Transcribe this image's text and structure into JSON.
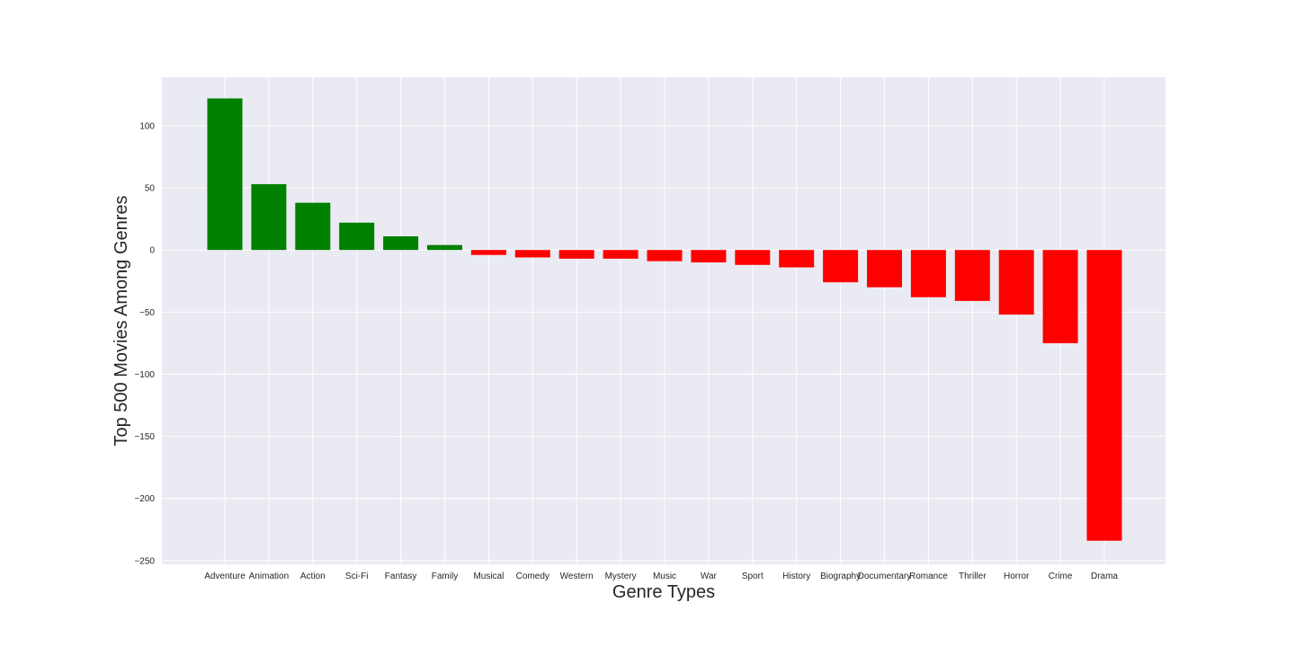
{
  "chart_data": {
    "type": "bar",
    "title": "",
    "xlabel": "Genre Types",
    "ylabel": "Top 500 Movies Among Genres",
    "categories": [
      "Adventure",
      "Animation",
      "Action",
      "Sci-Fi",
      "Fantasy",
      "Family",
      "Musical",
      "Comedy",
      "Western",
      "Mystery",
      "Music",
      "War",
      "Sport",
      "History",
      "Biography",
      "Documentary",
      "Romance",
      "Thriller",
      "Horror",
      "Crime",
      "Drama"
    ],
    "values": [
      122,
      53,
      38,
      22,
      11,
      4,
      -4,
      -6,
      -7,
      -7,
      -9,
      -10,
      -12,
      -14,
      -26,
      -30,
      -38,
      -41,
      -52,
      -75,
      -234
    ],
    "yticks": [
      100,
      50,
      0,
      -50,
      -100,
      -150,
      -200,
      -250
    ],
    "ytick_labels": [
      "100",
      "50",
      "0",
      "−50",
      "−100",
      "−150",
      "−200",
      "−250"
    ],
    "ylim": [
      -253,
      139
    ],
    "grid": true,
    "colors": {
      "positive": "#008000",
      "negative": "#ff0000",
      "background": "#eaeaf2",
      "grid": "#ffffff"
    }
  }
}
